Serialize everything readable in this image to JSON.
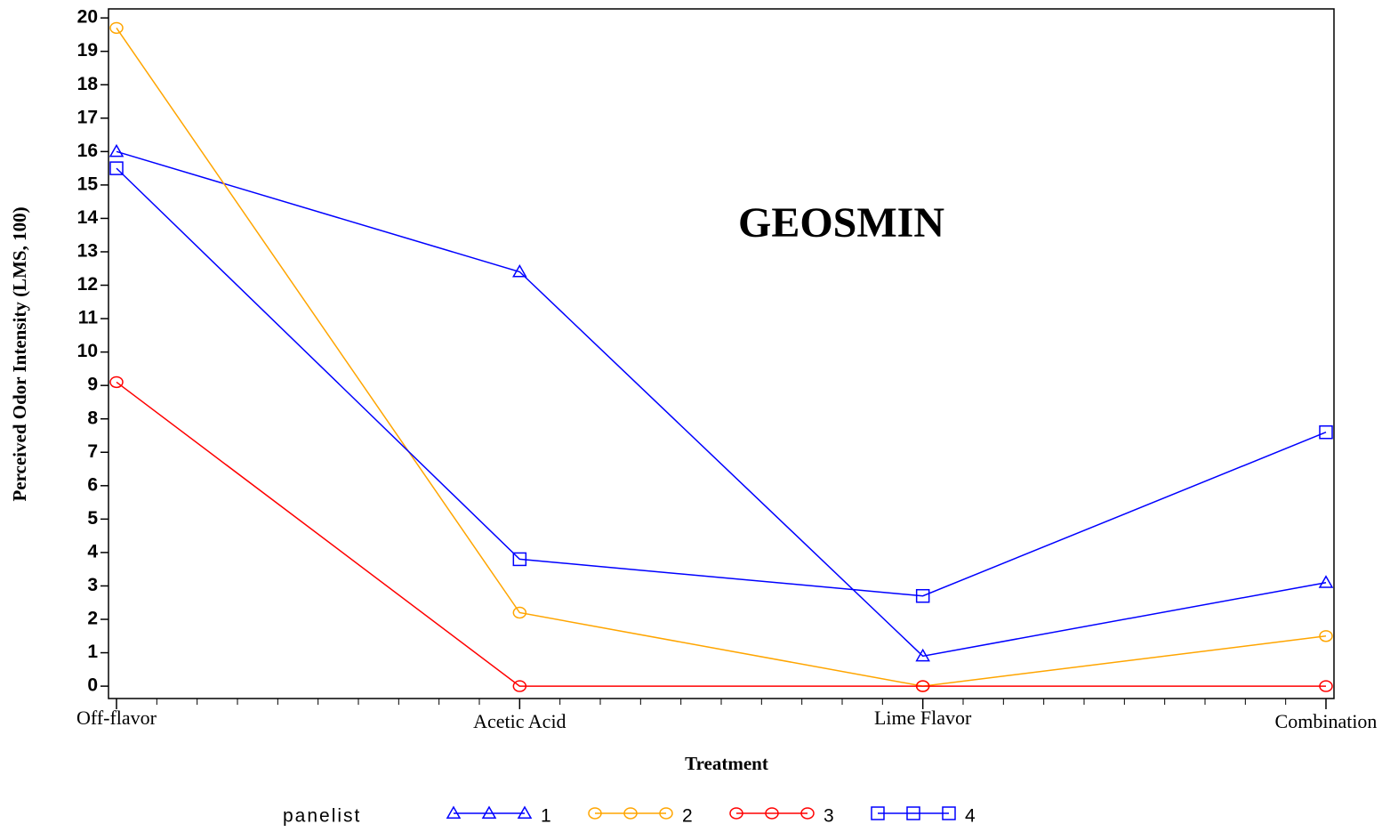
{
  "chart_data": {
    "type": "line",
    "title": "GEOSMIN",
    "x_label": "Treatment",
    "y_label": "Perceived Odor Intensity (LMS, 100)",
    "categories": [
      "Off-flavor",
      "Acetic Acid",
      "Lime Flavor",
      "Combination"
    ],
    "legend_title": "panelist",
    "series": [
      {
        "name": "1",
        "color": "#0000ff",
        "marker": "triangle",
        "values": [
          16.0,
          12.4,
          0.9,
          3.1
        ]
      },
      {
        "name": "2",
        "color": "#ffa500",
        "marker": "circle",
        "values": [
          19.7,
          2.2,
          0.0,
          1.5
        ]
      },
      {
        "name": "3",
        "color": "#ff0000",
        "marker": "circle",
        "values": [
          9.1,
          0.0,
          0.0,
          0.0
        ]
      },
      {
        "name": "4",
        "color": "#0000ff",
        "marker": "square",
        "values": [
          15.5,
          3.8,
          2.7,
          7.6
        ]
      }
    ],
    "ylim": [
      -0.37,
      20.27
    ],
    "yticks": [
      0,
      1,
      2,
      3,
      4,
      5,
      6,
      7,
      8,
      9,
      10,
      11,
      12,
      13,
      14,
      15,
      16,
      17,
      18,
      19,
      20
    ],
    "legend": "bottom"
  }
}
